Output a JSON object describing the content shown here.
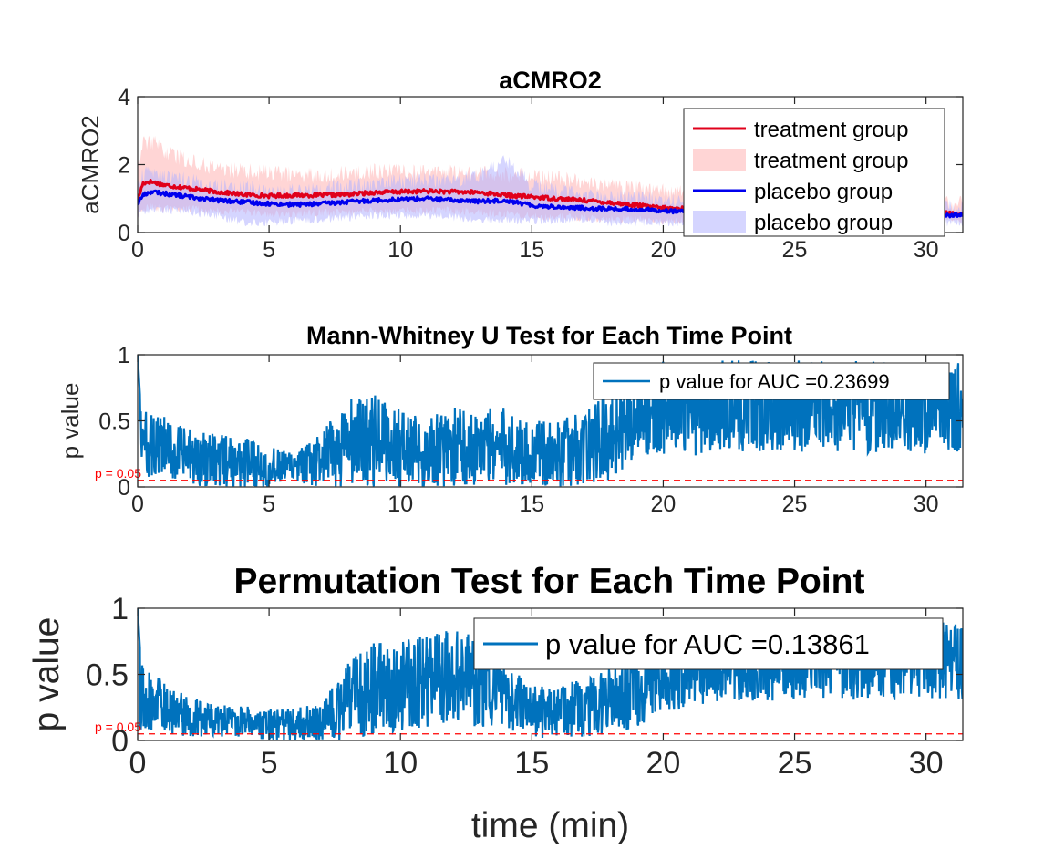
{
  "figure": {
    "colors": {
      "treatment": "#e0001b",
      "treatment_band": "#ffb3b3",
      "placebo": "#0000ee",
      "placebo_band": "#b3b3ff",
      "pvalue": "#0072bd",
      "threshold": "#ff0000"
    }
  },
  "chart_data": [
    {
      "type": "line",
      "title": "aCMRO2",
      "xlabel": "",
      "ylabel": "aCMRO2",
      "xlim": [
        0,
        31.4
      ],
      "ylim": [
        0,
        4
      ],
      "xticks": [
        "0",
        "5",
        "10",
        "15",
        "20",
        "25",
        "30"
      ],
      "yticks": [
        "0",
        "2",
        "4"
      ],
      "grid": false,
      "legend_position": "top-right",
      "legend": [
        "treatment group",
        "treatment group",
        "placebo group",
        "placebo group"
      ],
      "series": [
        {
          "name": "treatment group",
          "kind": "mean",
          "x": [
            0,
            0.2,
            0.5,
            1,
            2,
            3,
            4,
            5,
            6,
            7,
            8,
            9,
            10,
            11,
            12,
            13,
            14,
            15,
            16,
            17,
            18,
            19,
            20,
            21,
            22,
            23,
            24,
            25,
            26,
            27,
            28,
            29,
            30,
            31.4
          ],
          "values": [
            0.95,
            1.45,
            1.5,
            1.4,
            1.3,
            1.2,
            1.12,
            1.08,
            1.1,
            1.1,
            1.12,
            1.18,
            1.2,
            1.22,
            1.2,
            1.18,
            1.1,
            1.05,
            1.0,
            0.95,
            0.88,
            0.8,
            0.72,
            0.7,
            0.68,
            0.66,
            0.64,
            0.62,
            0.6,
            0.6,
            0.6,
            0.6,
            0.58,
            0.55
          ]
        },
        {
          "name": "treatment group",
          "kind": "band",
          "x": [
            0,
            0.2,
            0.5,
            1,
            2,
            3,
            4,
            5,
            6,
            7,
            8,
            9,
            10,
            11,
            12,
            13,
            14,
            15,
            16,
            17,
            18,
            19,
            20,
            21,
            22,
            23,
            24,
            25,
            26,
            27,
            28,
            29,
            30,
            31.4
          ],
          "upper": [
            2.0,
            2.6,
            2.7,
            2.4,
            2.1,
            1.9,
            1.8,
            1.75,
            1.7,
            1.7,
            1.75,
            1.8,
            1.8,
            1.8,
            1.75,
            1.75,
            1.7,
            1.65,
            1.6,
            1.5,
            1.4,
            1.3,
            1.2,
            1.15,
            1.1,
            1.05,
            1.0,
            0.95,
            0.95,
            0.92,
            0.9,
            0.9,
            0.88,
            0.85
          ],
          "lower": [
            0.5,
            0.7,
            0.75,
            0.7,
            0.7,
            0.65,
            0.6,
            0.55,
            0.55,
            0.6,
            0.6,
            0.65,
            0.65,
            0.65,
            0.65,
            0.6,
            0.55,
            0.5,
            0.45,
            0.45,
            0.4,
            0.4,
            0.35,
            0.35,
            0.35,
            0.35,
            0.35,
            0.35,
            0.35,
            0.35,
            0.35,
            0.35,
            0.35,
            0.35
          ]
        },
        {
          "name": "placebo group",
          "kind": "mean",
          "x": [
            0,
            0.2,
            0.5,
            1,
            2,
            3,
            4,
            5,
            6,
            7,
            8,
            9,
            10,
            11,
            12,
            13,
            14,
            15,
            16,
            17,
            18,
            19,
            20,
            21,
            22,
            23,
            24,
            25,
            26,
            27,
            28,
            29,
            30,
            31.4
          ],
          "values": [
            0.85,
            1.1,
            1.2,
            1.15,
            1.05,
            0.95,
            0.9,
            0.85,
            0.82,
            0.85,
            0.9,
            0.95,
            0.98,
            1.0,
            0.95,
            0.92,
            0.95,
            0.8,
            0.75,
            0.72,
            0.7,
            0.68,
            0.65,
            0.6,
            0.58,
            0.6,
            0.62,
            0.58,
            0.55,
            0.52,
            0.5,
            0.5,
            0.52,
            0.5
          ]
        },
        {
          "name": "placebo group",
          "kind": "band",
          "x": [
            0,
            0.2,
            0.5,
            1,
            2,
            3,
            4,
            5,
            6,
            7,
            8,
            9,
            10,
            11,
            12,
            13,
            14,
            15,
            16,
            17,
            18,
            19,
            20,
            21,
            22,
            23,
            24,
            25,
            26,
            27,
            28,
            29,
            30,
            31.4
          ],
          "upper": [
            1.3,
            1.7,
            1.8,
            1.7,
            1.5,
            1.35,
            1.3,
            1.2,
            1.2,
            1.25,
            1.35,
            1.45,
            1.5,
            1.55,
            1.55,
            1.7,
            2.1,
            1.4,
            1.2,
            1.1,
            1.05,
            1.0,
            0.95,
            0.9,
            0.85,
            0.9,
            0.95,
            0.85,
            0.85,
            0.8,
            0.8,
            0.78,
            0.78,
            0.75
          ],
          "lower": [
            0.45,
            0.6,
            0.65,
            0.65,
            0.6,
            0.5,
            0.3,
            0.3,
            0.35,
            0.4,
            0.45,
            0.5,
            0.5,
            0.5,
            0.45,
            0.4,
            0.35,
            0.35,
            0.35,
            0.35,
            0.3,
            0.3,
            0.3,
            0.3,
            0.3,
            0.3,
            0.3,
            0.3,
            0.3,
            0.3,
            0.3,
            0.3,
            0.3,
            0.3
          ]
        }
      ]
    },
    {
      "type": "line",
      "title": "Mann-Whitney U Test for Each Time Point",
      "xlabel": "",
      "ylabel": "p value",
      "xlim": [
        0,
        31.4
      ],
      "ylim": [
        0,
        1
      ],
      "xticks": [
        "0",
        "5",
        "10",
        "15",
        "20",
        "25",
        "30"
      ],
      "yticks": [
        "0",
        "0.5",
        "1"
      ],
      "grid": false,
      "legend_position": "top-right",
      "legend": [
        "p value for AUC =0.23699"
      ],
      "threshold": {
        "value": 0.05,
        "label": "p = 0.05"
      },
      "series": [
        {
          "name": "p value for AUC =0.23699",
          "x": [
            0,
            1,
            2,
            3,
            4,
            5,
            6,
            7,
            8,
            9,
            10,
            11,
            12,
            13,
            14,
            15,
            16,
            17,
            18,
            19,
            20,
            21,
            22,
            23,
            24,
            25,
            26,
            27,
            28,
            29,
            30,
            31.4
          ],
          "center": [
            0.35,
            0.28,
            0.22,
            0.2,
            0.18,
            0.15,
            0.14,
            0.2,
            0.32,
            0.35,
            0.3,
            0.25,
            0.3,
            0.32,
            0.3,
            0.25,
            0.25,
            0.3,
            0.4,
            0.55,
            0.6,
            0.58,
            0.6,
            0.62,
            0.6,
            0.62,
            0.6,
            0.62,
            0.6,
            0.62,
            0.6,
            0.6
          ],
          "spread": [
            0.25,
            0.25,
            0.22,
            0.2,
            0.2,
            0.15,
            0.12,
            0.22,
            0.35,
            0.35,
            0.3,
            0.28,
            0.3,
            0.3,
            0.3,
            0.25,
            0.25,
            0.3,
            0.35,
            0.35,
            0.35,
            0.35,
            0.35,
            0.35,
            0.35,
            0.35,
            0.35,
            0.35,
            0.35,
            0.35,
            0.35,
            0.35
          ]
        }
      ]
    },
    {
      "type": "line",
      "title": "Permutation Test for Each Time Point",
      "xlabel": "time (min)",
      "ylabel": "p value",
      "xlim": [
        0,
        31.4
      ],
      "ylim": [
        0,
        1
      ],
      "xticks": [
        "0",
        "5",
        "10",
        "15",
        "20",
        "25",
        "30"
      ],
      "yticks": [
        "0",
        "0.5",
        "1"
      ],
      "grid": false,
      "legend_position": "top-right",
      "legend": [
        "p value for AUC =0.13861"
      ],
      "threshold": {
        "value": 0.05,
        "label": "p = 0.05"
      },
      "series": [
        {
          "name": "p value for AUC =0.13861",
          "x": [
            0,
            1,
            2,
            3,
            4,
            5,
            6,
            7,
            8,
            9,
            10,
            11,
            12,
            13,
            14,
            15,
            16,
            17,
            18,
            19,
            20,
            21,
            22,
            23,
            24,
            25,
            26,
            27,
            28,
            29,
            30,
            31.4
          ],
          "center": [
            0.35,
            0.25,
            0.18,
            0.15,
            0.15,
            0.12,
            0.12,
            0.15,
            0.3,
            0.4,
            0.42,
            0.45,
            0.5,
            0.45,
            0.32,
            0.22,
            0.22,
            0.25,
            0.3,
            0.4,
            0.5,
            0.55,
            0.55,
            0.58,
            0.6,
            0.6,
            0.62,
            0.6,
            0.62,
            0.6,
            0.62,
            0.6
          ],
          "spread": [
            0.25,
            0.2,
            0.15,
            0.12,
            0.12,
            0.12,
            0.12,
            0.15,
            0.3,
            0.35,
            0.35,
            0.35,
            0.35,
            0.35,
            0.25,
            0.2,
            0.2,
            0.22,
            0.25,
            0.3,
            0.3,
            0.3,
            0.3,
            0.3,
            0.3,
            0.3,
            0.3,
            0.3,
            0.3,
            0.3,
            0.3,
            0.3
          ]
        }
      ]
    }
  ]
}
